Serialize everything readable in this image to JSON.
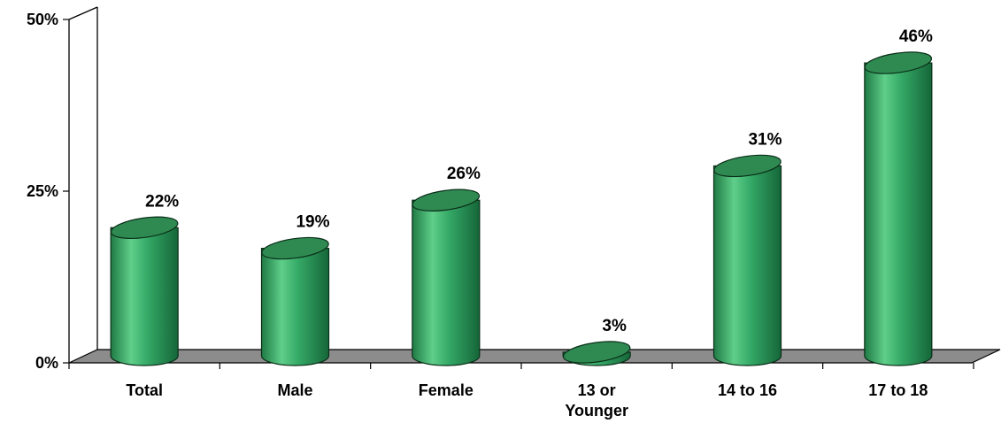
{
  "chart_data": {
    "type": "bar",
    "title": "",
    "xlabel": "",
    "ylabel": "",
    "categories": [
      [
        "Total"
      ],
      [
        "Male"
      ],
      [
        "Female"
      ],
      [
        "13 or",
        "Younger"
      ],
      [
        "14 to 16"
      ],
      [
        "17 to 18"
      ]
    ],
    "values": [
      22,
      19,
      26,
      3,
      31,
      46
    ],
    "data_labels": [
      "22%",
      "19%",
      "26%",
      "3%",
      "31%",
      "46%"
    ],
    "ylim": [
      0,
      50
    ],
    "yticks": [
      0,
      25,
      50
    ],
    "ytick_labels": [
      "0%",
      "25%",
      "50%"
    ],
    "grid": false,
    "legend": "none",
    "style": "3d-cylinder"
  },
  "colors": {
    "bar_body": "#2e9e5c",
    "bar_light": "#6fd394",
    "bar_dark": "#156638",
    "bar_top": "#2f8a52",
    "floor": "#8c8c8c",
    "axis": "#000000"
  }
}
